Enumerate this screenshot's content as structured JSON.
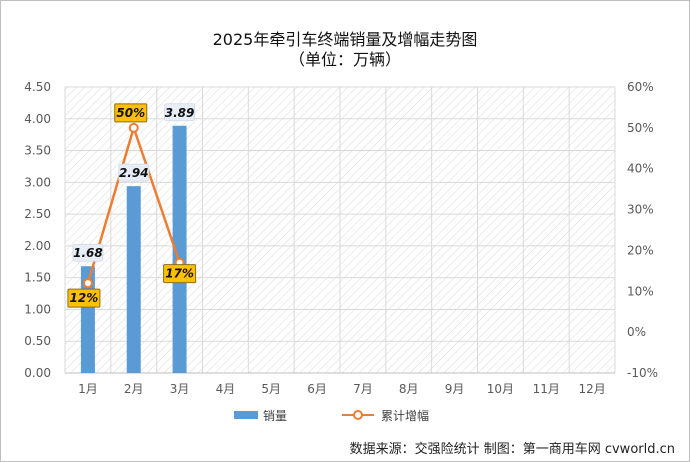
{
  "chart_data": {
    "type": "bar",
    "title": "2025年牵引车终端销量及增幅走势图",
    "subtitle": "（单位：万辆）",
    "categories": [
      "1月",
      "2月",
      "3月",
      "4月",
      "5月",
      "6月",
      "7月",
      "8月",
      "9月",
      "10月",
      "11月",
      "12月"
    ],
    "series": [
      {
        "name": "销量",
        "type": "bar",
        "axis": "left",
        "color": "#5b9bd5",
        "values": [
          1.68,
          2.94,
          3.89,
          null,
          null,
          null,
          null,
          null,
          null,
          null,
          null,
          null
        ],
        "labels": [
          "1.68",
          "2.94",
          "3.89"
        ]
      },
      {
        "name": "累计增幅",
        "type": "line",
        "axis": "right",
        "color": "#ed7d31",
        "values": [
          12,
          50,
          17,
          null,
          null,
          null,
          null,
          null,
          null,
          null,
          null,
          null
        ],
        "labels": [
          "12%",
          "50%",
          "17%"
        ]
      }
    ],
    "y_left": {
      "min": 0,
      "max": 4.5,
      "ticks": [
        "0.00",
        "0.50",
        "1.00",
        "1.50",
        "2.00",
        "2.50",
        "3.00",
        "3.50",
        "4.00",
        "4.50"
      ]
    },
    "y_right": {
      "min": -10,
      "max": 60,
      "ticks": [
        "-10%",
        "0%",
        "10%",
        "20%",
        "30%",
        "40%",
        "50%",
        "60%"
      ]
    },
    "grid": true,
    "legend_position": "bottom"
  },
  "source_text": "数据来源：交强险统计   制图：第一商用车网 cvworld.cn"
}
